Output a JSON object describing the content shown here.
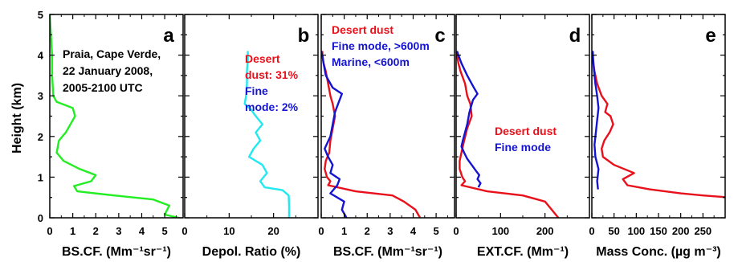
{
  "chart_data": {
    "type": "line",
    "ylabel": "Height (km)",
    "ylim": [
      0,
      5
    ],
    "yticks": [
      "0",
      "1",
      "2",
      "3",
      "4",
      "5"
    ],
    "grid": false,
    "colors": {
      "desert": "#e8101a",
      "fine": "#1414d2",
      "total": "#22ee22",
      "depol": "#22e8f0"
    },
    "panels": [
      {
        "label": "a",
        "xlabel": "BS.CF. (Mm⁻¹sr⁻¹)",
        "xlim": [
          0,
          5.8
        ],
        "xticks": [
          0,
          1,
          2,
          3,
          4,
          5
        ],
        "xticklabels": [
          "0",
          "1",
          "2",
          "3",
          "4",
          "5"
        ],
        "annotation_lines": [
          {
            "text": "Praia, Cape Verde,",
            "color": "#000000"
          },
          {
            "text": "22 January 2008,",
            "color": "#000000"
          },
          {
            "text": "2005-2100 UTC",
            "color": "#000000"
          }
        ],
        "series": [
          {
            "color": "#22ee22",
            "x": [
              5.6,
              5.0,
              5.2,
              4.5,
              2.8,
              1.2,
              1.05,
              1.8,
              2.0,
              1.3,
              0.6,
              0.3,
              0.4,
              0.7,
              1.1,
              1.0,
              0.3,
              0.15,
              0.1,
              0.1,
              0.05,
              0.0
            ],
            "y": [
              0.0,
              0.08,
              0.3,
              0.45,
              0.55,
              0.65,
              0.78,
              0.9,
              1.05,
              1.2,
              1.4,
              1.6,
              1.9,
              2.1,
              2.5,
              2.7,
              2.85,
              3.0,
              3.5,
              4.0,
              4.5,
              5.0
            ]
          }
        ]
      },
      {
        "label": "b",
        "xlabel": "Depol. Ratio (%)",
        "xlim": [
          0,
          30
        ],
        "xticks": [
          0,
          10,
          20
        ],
        "xticklabels": [
          "0",
          "10",
          "20"
        ],
        "annotation_lines": [
          {
            "text": "Desert",
            "color": "#e8101a"
          },
          {
            "text": "dust: 31%",
            "color": "#e8101a"
          },
          {
            "text": "Fine",
            "color": "#1414d2"
          },
          {
            "text": "mode: 2%",
            "color": "#1414d2"
          }
        ],
        "series": [
          {
            "color": "#22e8f0",
            "x": [
              23.5,
              23.5,
              23.4,
              22.0,
              18.0,
              17.0,
              18.5,
              17.5,
              14.5,
              15.5,
              17.0,
              16.0,
              17.5,
              16.0,
              15.0,
              13.5,
              13.8,
              14.0,
              14.0,
              14.2,
              14.2
            ],
            "y": [
              0.0,
              0.3,
              0.55,
              0.68,
              0.75,
              0.9,
              1.1,
              1.3,
              1.5,
              1.7,
              1.9,
              2.1,
              2.3,
              2.5,
              2.65,
              2.8,
              3.0,
              3.3,
              3.6,
              3.9,
              4.1
            ]
          }
        ]
      },
      {
        "label": "c",
        "xlabel": "BS.CF. (Mm⁻¹sr⁻¹)",
        "xlim": [
          0,
          5.8
        ],
        "xticks": [
          0,
          1,
          2,
          3,
          4,
          5
        ],
        "xticklabels": [
          "0",
          "1",
          "2",
          "3",
          "4",
          "5"
        ],
        "annotation_lines": [
          {
            "text": "Desert dust",
            "color": "#e8101a"
          },
          {
            "text": "Fine mode, >600m",
            "color": "#1414d2"
          },
          {
            "text": "Marine, <600m",
            "color": "#1414d2"
          }
        ],
        "series": [
          {
            "color": "#e8101a",
            "x": [
              4.3,
              4.1,
              3.6,
              3.1,
              1.5,
              0.3,
              0.4,
              0.25,
              0.15,
              0.2,
              0.35,
              0.4,
              0.5,
              0.6,
              0.5,
              0.4,
              0.3,
              0.2,
              0.1,
              0.05,
              0.05
            ],
            "y": [
              0.0,
              0.2,
              0.4,
              0.55,
              0.65,
              0.8,
              0.9,
              1.0,
              1.2,
              1.4,
              1.6,
              1.9,
              2.2,
              2.5,
              2.8,
              3.0,
              3.3,
              3.6,
              3.8,
              4.0,
              4.1
            ]
          },
          {
            "color": "#1414d2",
            "x": [
              1.1,
              0.9,
              1.0,
              0.4,
              0.7,
              0.8,
              0.4,
              0.5,
              0.3,
              0.15,
              0.4,
              0.5,
              0.6,
              0.8,
              0.9,
              0.5,
              0.2,
              0.1,
              0.05,
              0.0
            ],
            "y": [
              0.0,
              0.2,
              0.4,
              0.6,
              0.8,
              0.95,
              1.1,
              1.3,
              1.5,
              1.7,
              2.0,
              2.3,
              2.6,
              2.9,
              3.05,
              3.2,
              3.5,
              3.8,
              4.0,
              4.1
            ]
          }
        ]
      },
      {
        "label": "d",
        "xlabel": "EXT.CF. (Mm⁻¹)",
        "xlim": [
          0,
          300
        ],
        "xticks": [
          0,
          100,
          200
        ],
        "xticklabels": [
          "0",
          "100",
          "200"
        ],
        "annotation_lines": [
          {
            "text": "Desert dust",
            "color": "#e8101a"
          },
          {
            "text": "Fine mode",
            "color": "#1414d2"
          }
        ],
        "series": [
          {
            "color": "#e8101a",
            "x": [
              230,
              215,
              200,
              150,
              70,
              12,
              20,
              14,
              8,
              8,
              12,
              18,
              25,
              35,
              32,
              25,
              20,
              10,
              5,
              2,
              2
            ],
            "y": [
              0.0,
              0.2,
              0.4,
              0.55,
              0.65,
              0.8,
              0.9,
              1.0,
              1.2,
              1.4,
              1.6,
              1.9,
              2.2,
              2.5,
              2.8,
              3.0,
              3.3,
              3.6,
              3.8,
              4.0,
              4.1
            ]
          },
          {
            "color": "#1414d2",
            "x": [
              50,
              55,
              48,
              52,
              45,
              35,
              25,
              18,
              12,
              15,
              20,
              25,
              30,
              38,
              48,
              40,
              25,
              12,
              5,
              2
            ],
            "y": [
              0.75,
              0.85,
              0.95,
              1.05,
              1.15,
              1.3,
              1.45,
              1.6,
              1.75,
              1.9,
              2.1,
              2.3,
              2.6,
              2.9,
              3.05,
              3.2,
              3.5,
              3.8,
              4.0,
              4.1
            ]
          }
        ]
      },
      {
        "label": "e",
        "xlabel": "Mass Conc. (µg m⁻³)",
        "xlim": [
          0,
          300
        ],
        "xticks": [
          0,
          50,
          100,
          150,
          200,
          250
        ],
        "xticklabels": [
          "0",
          "50",
          "100",
          "150",
          "200",
          "250"
        ],
        "annotation_lines": [],
        "series": [
          {
            "color": "#e8101a",
            "x": [
              310,
              250,
              200,
              130,
              80,
              70,
              95,
              50,
              25,
              22,
              28,
              40,
              48,
              42,
              30,
              35,
              22,
              12,
              6,
              2,
              2
            ],
            "y": [
              0.5,
              0.55,
              0.6,
              0.7,
              0.8,
              0.95,
              1.1,
              1.3,
              1.5,
              1.7,
              1.9,
              2.1,
              2.3,
              2.5,
              2.6,
              2.8,
              3.0,
              3.3,
              3.6,
              3.9,
              4.1
            ]
          },
          {
            "color": "#1414d2",
            "x": [
              14,
              12,
              15,
              8,
              6,
              9,
              12,
              15,
              12,
              8,
              5,
              3,
              2
            ],
            "y": [
              0.7,
              0.9,
              1.2,
              1.5,
              1.8,
              2.1,
              2.4,
              2.7,
              3.0,
              3.3,
              3.6,
              3.9,
              4.1
            ]
          }
        ]
      }
    ]
  }
}
